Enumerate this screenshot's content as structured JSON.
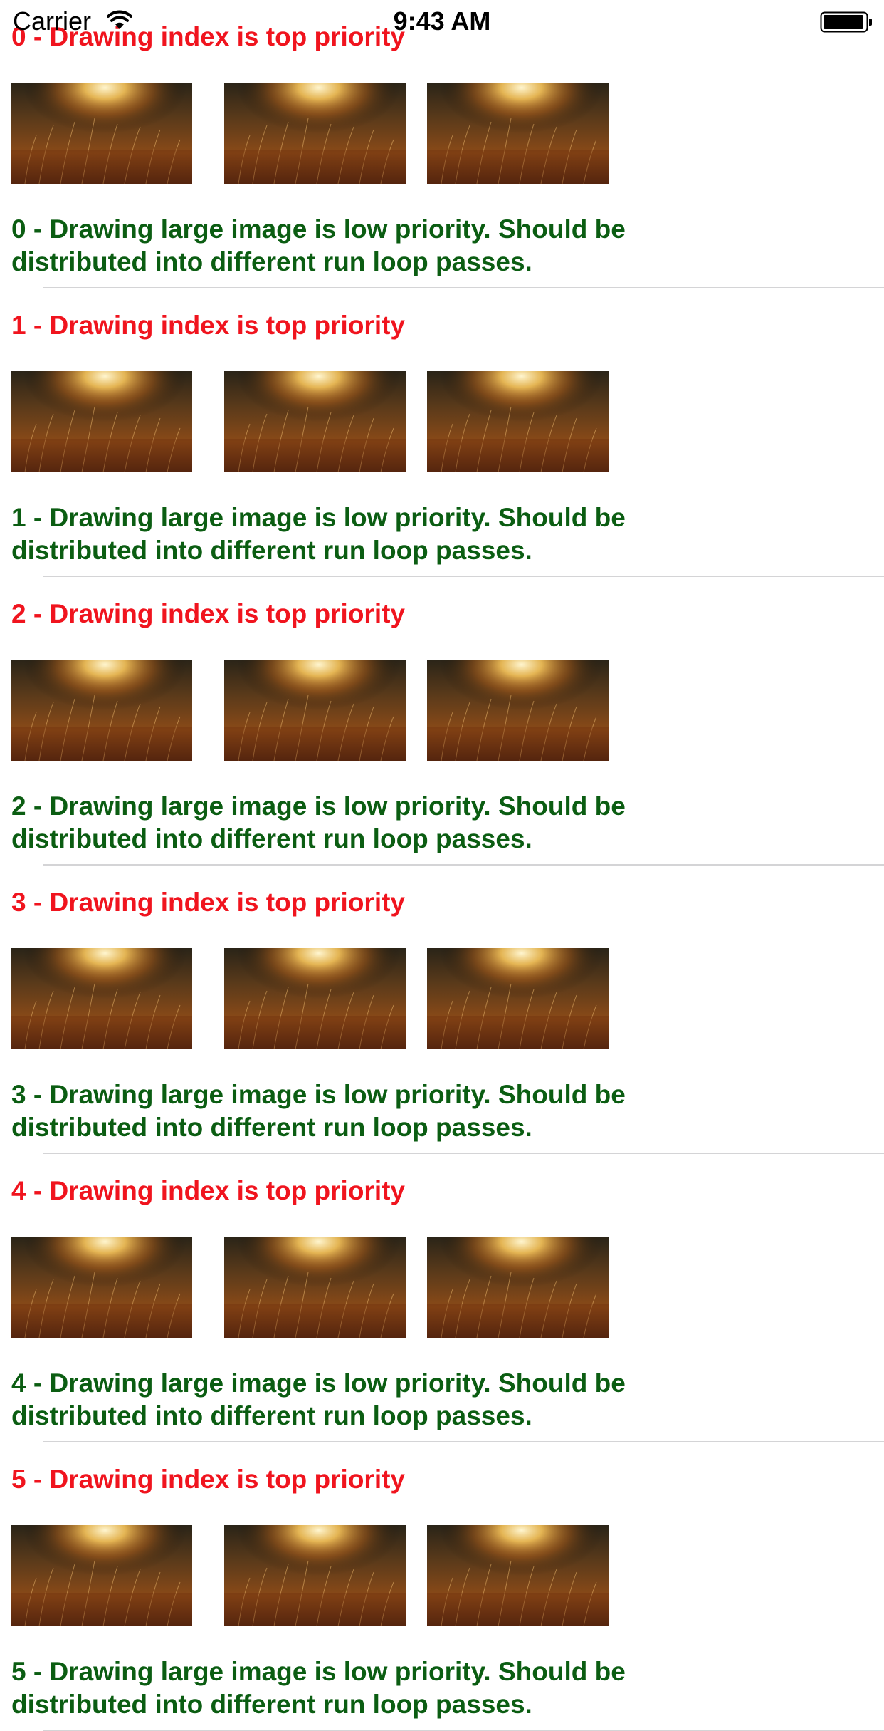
{
  "status_bar": {
    "carrier": "Carrier",
    "time": "9:43 AM"
  },
  "cells": [
    {
      "title": "0 - Drawing index is top priority",
      "description": "0 - Drawing large image is low priority. Should be distributed into different run loop passes."
    },
    {
      "title": "1 - Drawing index is top priority",
      "description": "1 - Drawing large image is low priority. Should be distributed into different run loop passes."
    },
    {
      "title": "2 - Drawing index is top priority",
      "description": "2 - Drawing large image is low priority. Should be distributed into different run loop passes."
    },
    {
      "title": "3 - Drawing index is top priority",
      "description": "3 - Drawing large image is low priority. Should be distributed into different run loop passes."
    },
    {
      "title": "4 - Drawing index is top priority",
      "description": "4 - Drawing large image is low priority. Should be distributed into different run loop passes."
    },
    {
      "title": "5 - Drawing index is top priority",
      "description": "5 - Drawing large image is low priority. Should be distributed into different run loop passes."
    }
  ],
  "thumbnails_per_cell": 3,
  "colors": {
    "title": "#f0141e",
    "description": "#0b5d12",
    "separator": "#d4d4d6"
  }
}
